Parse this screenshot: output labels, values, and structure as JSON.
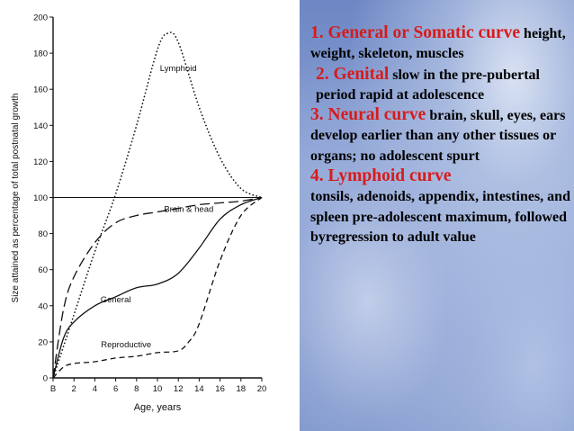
{
  "chart_data": {
    "type": "line",
    "xlabel": "Age, years",
    "ylabel": "Size attained as percentage of total postnatal growth",
    "x_ticks": [
      "B",
      "2",
      "4",
      "6",
      "8",
      "10",
      "12",
      "14",
      "16",
      "18",
      "20"
    ],
    "y_ticks": [
      0,
      20,
      40,
      60,
      80,
      100,
      120,
      140,
      160,
      180,
      200
    ],
    "xlim": [
      0,
      20
    ],
    "ylim": [
      0,
      200
    ],
    "reference_line": 100,
    "grid": false,
    "series": [
      {
        "name": "Lymphoid",
        "style": "dotted",
        "x": [
          0,
          2,
          4,
          6,
          8,
          10,
          11,
          12,
          14,
          16,
          18,
          20
        ],
        "y": [
          0,
          35,
          70,
          102,
          140,
          182,
          191,
          186,
          150,
          122,
          105,
          100
        ]
      },
      {
        "name": "Brain & head",
        "style": "long-dash",
        "x": [
          0,
          1,
          2,
          4,
          6,
          8,
          10,
          12,
          14,
          16,
          18,
          20
        ],
        "y": [
          0,
          38,
          56,
          75,
          86,
          90,
          92,
          94,
          96,
          97,
          98,
          100
        ]
      },
      {
        "name": "General",
        "style": "solid",
        "x": [
          0,
          1,
          2,
          4,
          6,
          8,
          10,
          12,
          14,
          16,
          18,
          20
        ],
        "y": [
          0,
          22,
          31,
          40,
          45,
          50,
          52,
          58,
          72,
          88,
          96,
          100
        ]
      },
      {
        "name": "Reproductive",
        "style": "short-dash",
        "x": [
          0,
          1,
          2,
          4,
          6,
          8,
          10,
          12,
          13,
          14,
          16,
          18,
          20
        ],
        "y": [
          0,
          6,
          8,
          9,
          11,
          12,
          14,
          15,
          20,
          30,
          65,
          90,
          100
        ]
      }
    ],
    "series_labels": [
      "Lymphoid",
      "Brain & head",
      "General",
      "Reproductive"
    ],
    "series_label_anchor": [
      [
        12,
        170
      ],
      [
        13,
        92
      ],
      [
        6,
        42
      ],
      [
        7,
        17
      ]
    ]
  },
  "notes": {
    "general_head": "1. General or Somatic curve",
    "general_text": "height, weight, skeleton, muscles",
    "genital_head": "2. Genital",
    "genital_text": "slow in the pre-pubertal period rapid at adolescence",
    "neural_head": "3.  Neural curve",
    "neural_text": "brain, skull, eyes, ears develop earlier than any other tissues or organs; no adolescent spurt",
    "lymphoid_head": "4.  Lymphoid curve",
    "lymphoid_text": "tonsils, adenoids, appendix, intestines, and spleen pre-adolescent maximum, followed byregression to adult value"
  }
}
